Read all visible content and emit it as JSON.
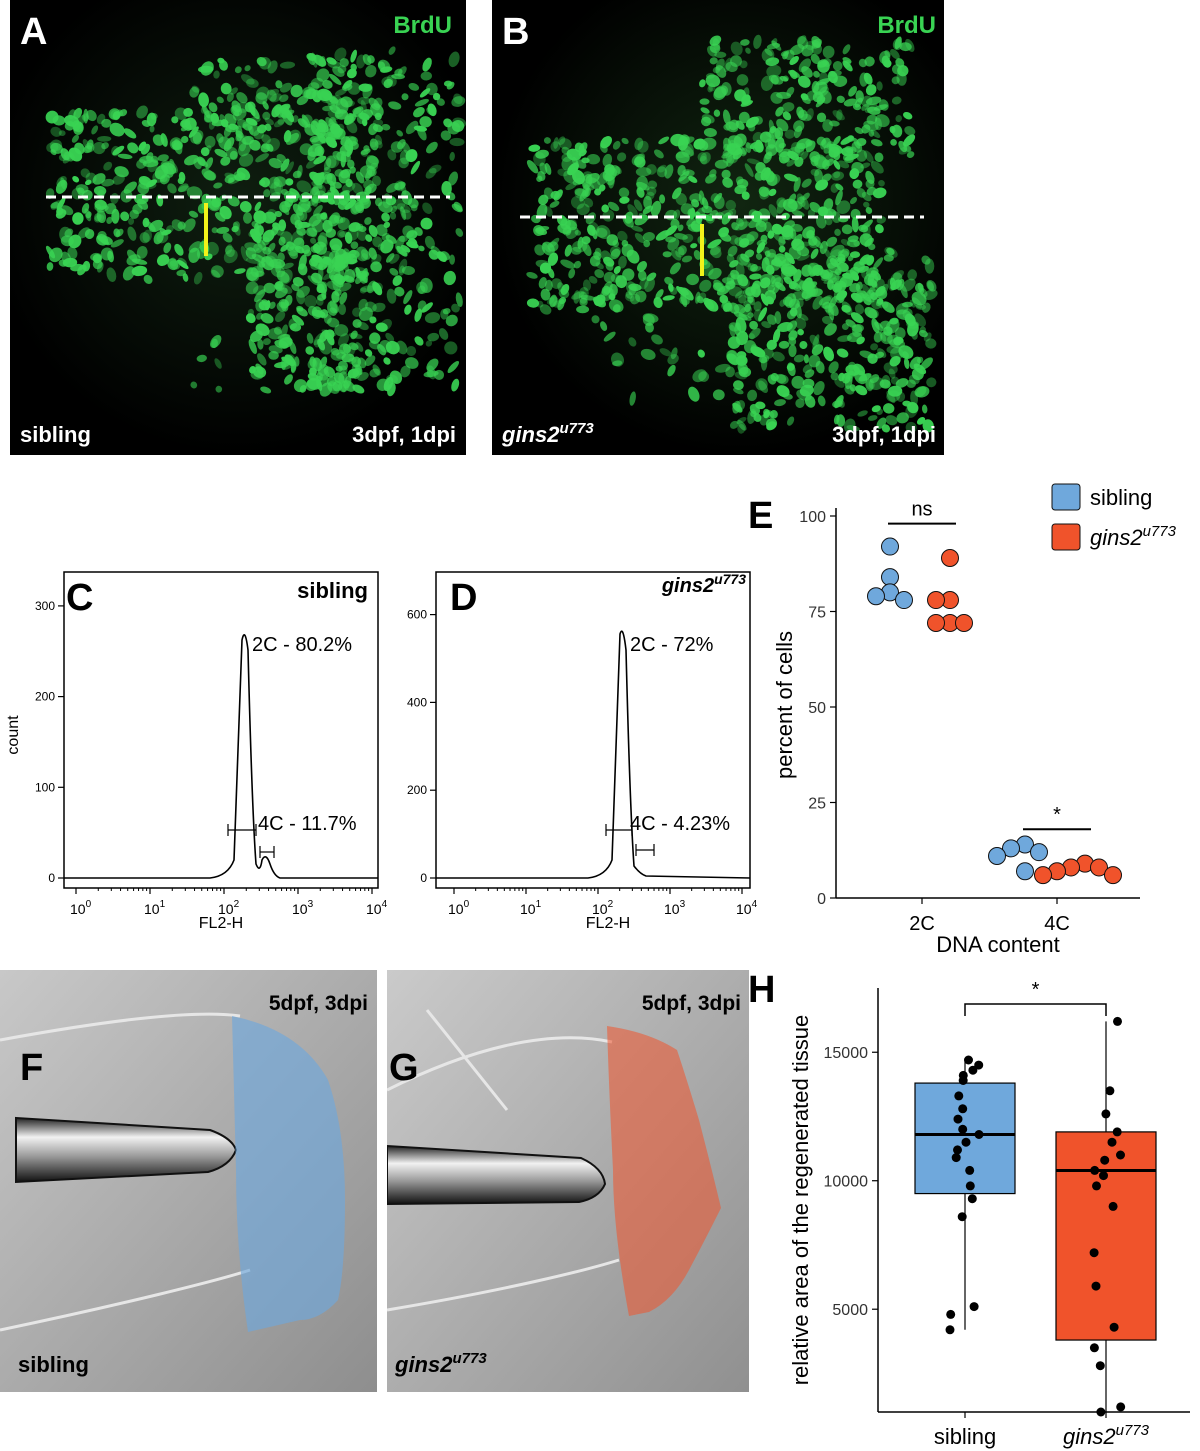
{
  "colors": {
    "sibling": "#6fa8dc",
    "mutant": "#f0532b",
    "brdu": "#39d353",
    "dash": "#ffffff",
    "yellow_bar": "#f2f21a"
  },
  "panels": {
    "A": {
      "letter": "A",
      "stain": "BrdU",
      "genotype": "sibling",
      "stage": "3dpf, 1dpi"
    },
    "B": {
      "letter": "B",
      "stain": "BrdU",
      "genotype_base": "gins2",
      "genotype_sup": "u773",
      "stage": "3dpf, 1dpi"
    },
    "C": {
      "letter": "C",
      "title": "sibling",
      "peak_2c": "2C - 80.2%",
      "peak_4c": "4C - 11.7%",
      "ylabel": "count",
      "xlabel": "FL2-H",
      "yticks": [
        "0",
        "100",
        "200",
        "300"
      ]
    },
    "D": {
      "letter": "D",
      "title_base": "gins2",
      "title_sup": "u773",
      "peak_2c": "2C - 72%",
      "peak_4c": "4C - 4.23%",
      "xlabel": "FL2-H",
      "yticks": [
        "0",
        "200",
        "400",
        "600"
      ]
    },
    "E": {
      "letter": "E"
    },
    "F": {
      "letter": "F",
      "stage": "5dpf, 3dpi",
      "genotype": "sibling"
    },
    "G": {
      "letter": "G",
      "stage": "5dpf, 3dpi",
      "genotype_base": "gins2",
      "genotype_sup": "u773"
    },
    "H": {
      "letter": "H"
    }
  },
  "log_ticks": [
    {
      "base": "10",
      "exp": "0"
    },
    {
      "base": "10",
      "exp": "1"
    },
    {
      "base": "10",
      "exp": "2"
    },
    {
      "base": "10",
      "exp": "3"
    },
    {
      "base": "10",
      "exp": "4"
    }
  ],
  "chart_data": [
    {
      "panel": "E",
      "type": "scatter",
      "xlabel": "DNA content",
      "ylabel": "percent of cells",
      "categories": [
        "2C",
        "4C"
      ],
      "ylim": [
        0,
        100
      ],
      "yticks": [
        0,
        25,
        50,
        75,
        100
      ],
      "legend": [
        {
          "label": "sibling",
          "color": "#6fa8dc"
        },
        {
          "label_base": "gins2",
          "label_sup": "u773",
          "color": "#f0532b"
        }
      ],
      "legend_position": "top-right",
      "series": [
        {
          "group": "sibling",
          "values_2c": [
            92,
            84,
            80,
            79,
            78
          ],
          "values_4c": [
            14,
            13,
            12,
            11,
            7
          ]
        },
        {
          "group": "gins2u773",
          "values_2c": [
            89,
            78,
            78,
            72,
            72,
            72
          ],
          "values_4c": [
            9,
            8,
            8,
            7,
            6,
            6
          ]
        }
      ],
      "significance": [
        {
          "category": "2C",
          "label": "ns"
        },
        {
          "category": "4C",
          "label": "*"
        }
      ]
    },
    {
      "panel": "H",
      "type": "box",
      "ylabel": "relative area of the regenerated tissue",
      "categories": [
        "sibling",
        "gins2u773"
      ],
      "category_labels": [
        {
          "base": "sibling",
          "sup": ""
        },
        {
          "base": "gins2",
          "sup": "u773"
        }
      ],
      "ylim": [
        1000,
        17500
      ],
      "yticks": [
        5000,
        10000,
        15000
      ],
      "boxes": [
        {
          "group": "sibling",
          "color": "#6fa8dc",
          "whisker_low": 4200,
          "q1": 9500,
          "median": 11800,
          "q3": 13800,
          "whisker_high": 14700,
          "points": [
            4200,
            4800,
            5100,
            8600,
            9300,
            9800,
            10400,
            10900,
            11200,
            11500,
            11800,
            12000,
            12400,
            12800,
            13300,
            13900,
            14100,
            14300,
            14500,
            14700
          ]
        },
        {
          "group": "gins2u773",
          "color": "#f0532b",
          "whisker_low": 1000,
          "q1": 3800,
          "median": 10400,
          "q3": 11900,
          "whisker_high": 16200,
          "points": [
            1000,
            1200,
            2800,
            3500,
            4300,
            5900,
            7200,
            9000,
            9800,
            10200,
            10400,
            10800,
            11000,
            11500,
            11900,
            12600,
            13500,
            16200
          ]
        }
      ],
      "significance": [
        {
          "between": [
            "sibling",
            "gins2u773"
          ],
          "label": "*"
        }
      ]
    }
  ]
}
